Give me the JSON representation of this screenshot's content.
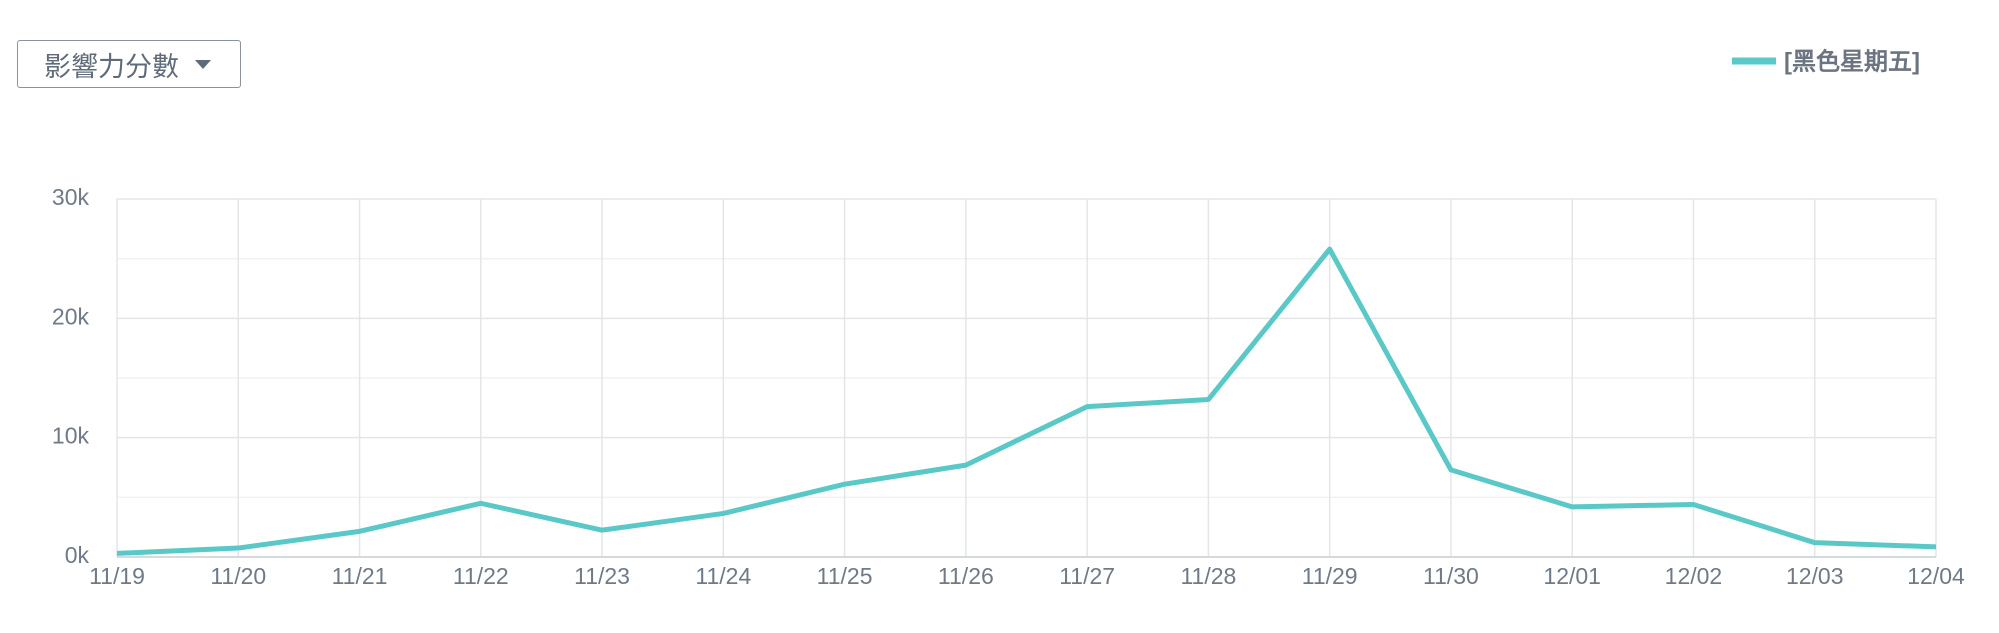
{
  "dropdown": {
    "label": "影響力分數"
  },
  "chart_data": {
    "type": "line",
    "categories": [
      "11/19",
      "11/20",
      "11/21",
      "11/22",
      "11/23",
      "11/24",
      "11/25",
      "11/26",
      "11/27",
      "11/28",
      "11/29",
      "11/30",
      "12/01",
      "12/02",
      "12/03",
      "12/04"
    ],
    "series": [
      {
        "name": "[黑色星期五]",
        "color": "#5bc8c8",
        "values": [
          300,
          750,
          2150,
          4500,
          2250,
          3650,
          6100,
          7700,
          12600,
          13200,
          25800,
          7300,
          4200,
          4400,
          1200,
          850
        ]
      }
    ],
    "ylim": [
      0,
      30000
    ],
    "yticks": [
      {
        "value": 0,
        "label": "0k"
      },
      {
        "value": 10000,
        "label": "10k"
      },
      {
        "value": 20000,
        "label": "20k"
      },
      {
        "value": 30000,
        "label": "30k"
      }
    ],
    "minor_yticks": [
      5000,
      15000,
      25000
    ],
    "grid": true,
    "legend": "top-right"
  }
}
